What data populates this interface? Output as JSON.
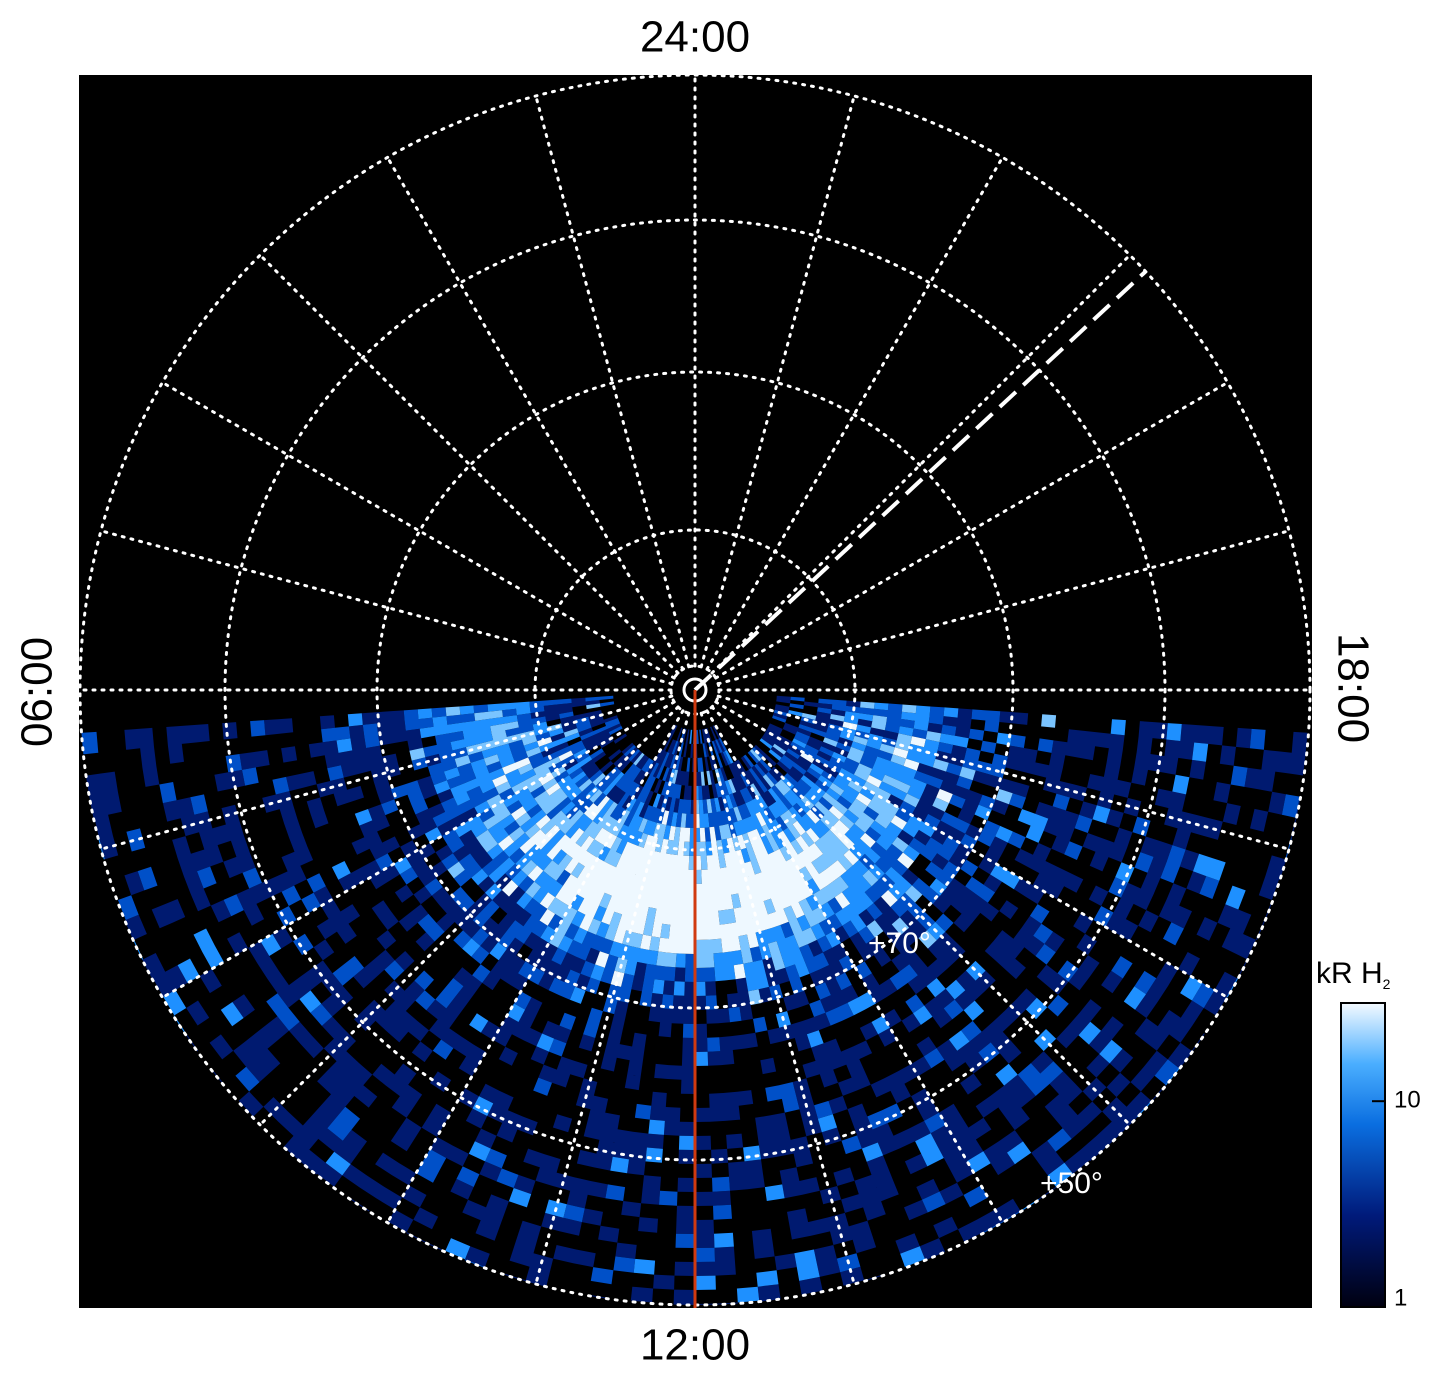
{
  "chart_data": {
    "type": "polar-map",
    "local_time_labels": {
      "top": "24:00",
      "left": "06:00",
      "bottom": "12:00",
      "right": "18:00"
    },
    "latitude_labels": [
      "+70°",
      "+50°"
    ],
    "colorbar": {
      "label": "kR H",
      "label_subscript": "2",
      "scale": "log",
      "lim": [
        1,
        30
      ],
      "ticks": [
        1,
        10
      ]
    }
  }
}
